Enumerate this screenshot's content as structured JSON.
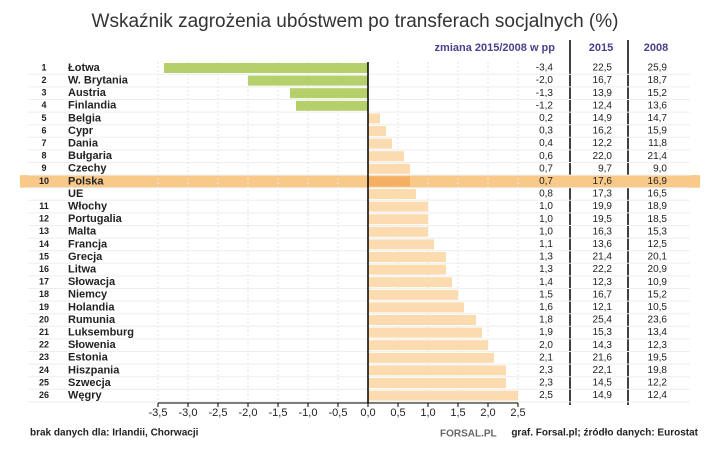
{
  "chart_data": {
    "type": "bar",
    "orientation": "horizontal",
    "title": "Wskaźnik zagrożenia ubóstwem po transferach socjalnych (%)",
    "value_header": "zmiana 2015/2008 w pp",
    "col_2015_header": "2015",
    "col_2008_header": "2008",
    "ranks": [
      1,
      2,
      3,
      4,
      5,
      6,
      7,
      8,
      9,
      10,
      null,
      11,
      12,
      13,
      14,
      15,
      16,
      17,
      18,
      19,
      20,
      21,
      22,
      23,
      24,
      25,
      26
    ],
    "categories": [
      "Łotwa",
      "W. Brytania",
      "Austria",
      "Finlandia",
      "Belgia",
      "Cypr",
      "Dania",
      "Bułgaria",
      "Czechy",
      "Polska",
      "UE",
      "Włochy",
      "Portugalia",
      "Malta",
      "Francja",
      "Grecja",
      "Litwa",
      "Słowacja",
      "Niemcy",
      "Holandia",
      "Rumunia",
      "Luksemburg",
      "Słowenia",
      "Estonia",
      "Hiszpania",
      "Szwecja",
      "Węgry"
    ],
    "values": [
      -3.4,
      -2.0,
      -1.3,
      -1.2,
      0.2,
      0.3,
      0.4,
      0.6,
      0.7,
      0.7,
      0.8,
      1.0,
      1.0,
      1.0,
      1.1,
      1.3,
      1.3,
      1.4,
      1.5,
      1.6,
      1.8,
      1.9,
      2.0,
      2.1,
      2.3,
      2.3,
      2.5
    ],
    "value_labels": [
      "-3,4",
      "-2,0",
      "-1,3",
      "-1,2",
      "0,2",
      "0,3",
      "0,4",
      "0,6",
      "0,7",
      "0,7",
      "0,8",
      "1,0",
      "1,0",
      "1,0",
      "1,1",
      "1,3",
      "1,3",
      "1,4",
      "1,5",
      "1,6",
      "1,8",
      "1,9",
      "2,0",
      "2,1",
      "2,3",
      "2,3",
      "2,5"
    ],
    "col_2015": [
      "22,5",
      "16,7",
      "13,9",
      "12,4",
      "14,9",
      "16,2",
      "12,2",
      "22,0",
      "9,7",
      "17,6",
      "17,3",
      "19,9",
      "19,5",
      "16,3",
      "13,6",
      "21,4",
      "22,2",
      "12,3",
      "16,7",
      "12,1",
      "25,4",
      "15,3",
      "14,3",
      "21,6",
      "22,1",
      "14,5",
      "14,9"
    ],
    "col_2008": [
      "25,9",
      "18,7",
      "15,2",
      "13,6",
      "14,7",
      "15,9",
      "11,8",
      "21,4",
      "9,0",
      "16,9",
      "16,5",
      "18,9",
      "18,5",
      "15,3",
      "12,5",
      "20,1",
      "20,9",
      "10,9",
      "15,2",
      "10,5",
      "23,6",
      "13,4",
      "12,3",
      "19,5",
      "19,8",
      "12,2",
      "12,4"
    ],
    "negative_color": "#b5cf6b",
    "positive_color": "#fcdcae",
    "highlight": "Polska",
    "highlight_color": "#f9c98a",
    "highlight_bar_color": "#f5b061",
    "xlim": [
      -3.5,
      2.5
    ],
    "xticks": [
      {
        "value": -3.5,
        "label": "-3,5"
      },
      {
        "value": -3.0,
        "label": "-3,0"
      },
      {
        "value": -2.5,
        "label": "-2,5"
      },
      {
        "value": -2.0,
        "label": "-2,0"
      },
      {
        "value": -1.5,
        "label": "-1,5"
      },
      {
        "value": -1.0,
        "label": "-1,0"
      },
      {
        "value": -0.5,
        "label": "-0,5"
      },
      {
        "value": 0,
        "label": "0,0"
      },
      {
        "value": 0.5,
        "label": "0,5"
      },
      {
        "value": 1.0,
        "label": "1,0"
      },
      {
        "value": 1.5,
        "label": "1,5"
      },
      {
        "value": 2.0,
        "label": "2,0"
      },
      {
        "value": 2.5,
        "label": "2,5"
      }
    ],
    "grid": true,
    "note": "brak danych dla: Irlandii, Chorwacji",
    "logo": "FORSAL.PL",
    "source": "graf. Forsal.pl; źródło danych: Eurostat"
  }
}
